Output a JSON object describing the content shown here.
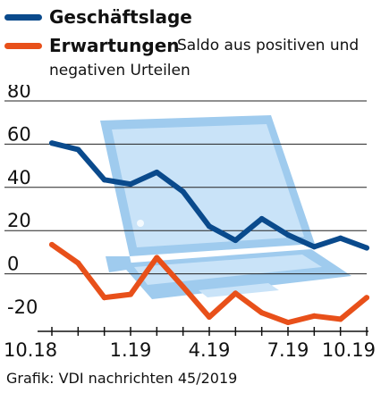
{
  "legend": {
    "series_1": "Geschäftslage",
    "series_2": "Erwartungen",
    "note_1": "Saldo aus positiven und",
    "note_2": "negativen Urteilen"
  },
  "source": "Grafik: VDI nachrichten 45/2019",
  "colors": {
    "series_1": "#0a4a8c",
    "series_2": "#e8501a",
    "gridline": "#222222",
    "illustration": "#9fcbee",
    "illustration_light": "#c9e3f8"
  },
  "illustration": {
    "icon": "laptop-icon"
  },
  "chart_data": {
    "type": "line",
    "x": [
      "10.18",
      "11.18",
      "12.18",
      "1.19",
      "2.19",
      "3.19",
      "4.19",
      "5.19",
      "6.19",
      "7.19",
      "8.19",
      "9.19",
      "10.19"
    ],
    "x_tick_labels": [
      "10.18",
      "1.19",
      "4.19",
      "7.19",
      "10.19"
    ],
    "y_ticks": [
      "80",
      "60",
      "40",
      "20",
      "0",
      "-20"
    ],
    "ylim": [
      -20,
      80
    ],
    "grid": true,
    "legend_position": "top-left",
    "series": [
      {
        "name": "Geschäftslage",
        "values": [
          60.5,
          57.5,
          43.5,
          41.5,
          47,
          38,
          22,
          15.5,
          25.5,
          18,
          12.5,
          16.5,
          12
        ]
      },
      {
        "name": "Erwartungen",
        "values": [
          13.5,
          5,
          -11,
          -9.5,
          7.5,
          -6,
          -20,
          -9,
          -18,
          -22.5,
          -19.5,
          -21,
          -11
        ]
      }
    ]
  }
}
